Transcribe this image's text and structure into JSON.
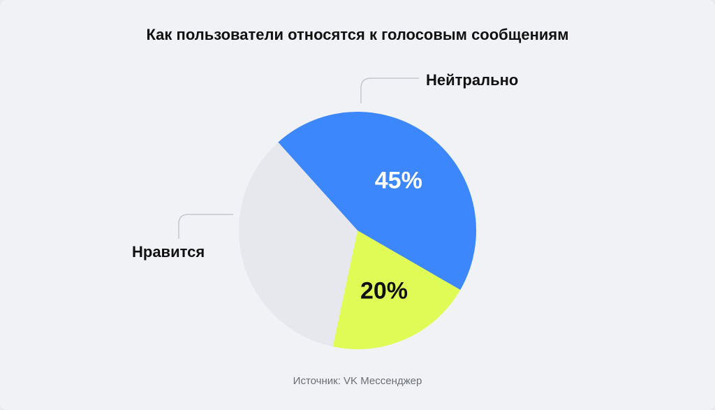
{
  "chart_data": {
    "type": "pie",
    "title": "Как пользователи относятся к голосовым сообщениям",
    "slices": [
      {
        "name": "Нейтрально",
        "value": 45,
        "value_label": "45%",
        "color": "#3b87fb",
        "label_color": "#ffffff"
      },
      {
        "name": "Нравится",
        "value": 20,
        "value_label": "20%",
        "color": "#e0fb55",
        "label_color": "#111111"
      },
      {
        "name": "",
        "value": 35,
        "value_label": "",
        "color": "#e7e8ed",
        "label_color": "#111111"
      }
    ],
    "legend": "callouts"
  },
  "source": "Источник: VK Мессенджер"
}
